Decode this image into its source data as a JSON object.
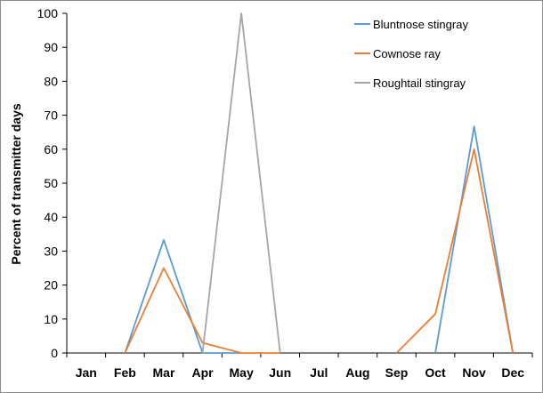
{
  "chart_data": {
    "type": "line",
    "title": "",
    "xlabel": "",
    "ylabel": "Percent of transmitter days",
    "categories": [
      "Jan",
      "Feb",
      "Mar",
      "Apr",
      "May",
      "Jun",
      "Jul",
      "Aug",
      "Sep",
      "Oct",
      "Nov",
      "Dec"
    ],
    "ylim": [
      0,
      100
    ],
    "yticks": [
      0,
      10,
      20,
      30,
      40,
      50,
      60,
      70,
      80,
      90,
      100
    ],
    "grid": false,
    "legend_position": "top-right",
    "series": [
      {
        "name": "Bluntnose stingray",
        "color": "#5b9bd5",
        "values": [
          null,
          0,
          33.3,
          0,
          0,
          null,
          null,
          null,
          null,
          0,
          66.7,
          0
        ]
      },
      {
        "name": "Cownose ray",
        "color": "#ed7d31",
        "values": [
          null,
          0,
          25,
          3,
          0,
          0,
          null,
          null,
          0,
          11.5,
          60,
          0
        ]
      },
      {
        "name": "Roughtail stingray",
        "color": "#a5a5a5",
        "values": [
          0,
          null,
          null,
          0,
          100,
          0,
          null,
          null,
          null,
          null,
          null,
          null
        ]
      }
    ]
  }
}
